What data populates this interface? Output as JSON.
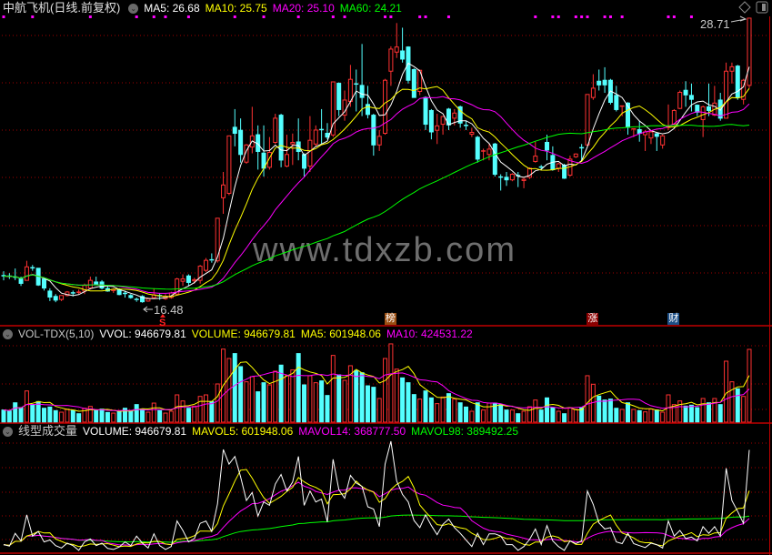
{
  "main_header": {
    "title": "中航飞机(日线.前复权)",
    "ma5": "MA5: 26.68",
    "ma10": "MA10: 25.75",
    "ma20": "MA20: 25.10",
    "ma60": "MA60: 24.21"
  },
  "volume_header": {
    "name": "VOL-TDX(5,10)",
    "vvol": "VVOL: 946679.81",
    "volume": "VOLUME: 946679.81",
    "ma5": "MA5: 601948.06",
    "ma10": "MA10: 424531.22"
  },
  "line_volume_header": {
    "name": "线型成交量",
    "volume": "VOLUME: 946679.81",
    "mavol5": "MAVOL5: 601948.06",
    "mavol14": "MAVOL14: 368777.50",
    "mavol98": "MAVOL98: 389492.25"
  },
  "labels": {
    "high": "28.71",
    "low": "16.48",
    "signal_s": "S",
    "tag_bang": "榜",
    "tag_zhang": "涨",
    "tag_cai": "财",
    "watermark": "www.tdxzb.com"
  },
  "icons": [
    "chevron-down-icon",
    "diamond-icon",
    "panel-toggle-icon"
  ],
  "colors": {
    "up": "#ff3232",
    "down": "#54ffff",
    "ma5": "#ffffff",
    "ma10": "#ffff00",
    "ma20": "#ff00ff",
    "ma60": "#00ff00",
    "grid": "#a00000",
    "divider": "#c00000",
    "tag_bang": "#9a4e12",
    "tag_zhang": "#8b0000",
    "tag_cai": "#1d4f86",
    "marker": "#ff00ff"
  },
  "chart_data": [
    {
      "type": "candlestick",
      "panel": "price",
      "ylim": [
        15.49,
        29.49
      ],
      "grid": true,
      "moving_averages": [
        5,
        10,
        20,
        60
      ],
      "high_marker_bar": 129,
      "low_marker_bar": 24,
      "signal_s_bar": 28,
      "tag_bars": {
        "tag_bang": 67,
        "tag_zhang": 102,
        "tag_cai": 116
      },
      "top_marker_bars": [
        0,
        5,
        15,
        23,
        26,
        28,
        32,
        40,
        45,
        51,
        57,
        59,
        66,
        67,
        72,
        73,
        77,
        92,
        95,
        96,
        99,
        100,
        101,
        104,
        105,
        107,
        115,
        116,
        119
      ],
      "ohlc": [
        [
          17.64,
          17.83,
          17.44,
          17.62
        ],
        [
          17.62,
          17.75,
          17.5,
          17.6
        ],
        [
          17.58,
          17.95,
          17.45,
          17.57
        ],
        [
          17.5,
          17.6,
          17.2,
          17.31
        ],
        [
          17.44,
          18.28,
          17.44,
          18.02
        ],
        [
          17.98,
          18.1,
          17.85,
          17.96
        ],
        [
          17.96,
          17.96,
          17.2,
          17.24
        ],
        [
          17.5,
          17.55,
          17.0,
          17.11
        ],
        [
          16.98,
          17.1,
          16.55,
          16.72
        ],
        [
          16.75,
          16.85,
          16.5,
          16.59
        ],
        [
          16.62,
          16.8,
          16.55,
          16.79
        ],
        [
          16.79,
          16.98,
          16.75,
          16.94
        ],
        [
          16.9,
          17.0,
          16.75,
          16.88
        ],
        [
          16.92,
          17.05,
          16.85,
          16.93
        ],
        [
          16.98,
          17.3,
          16.85,
          17.22
        ],
        [
          17.11,
          17.6,
          17.05,
          17.44
        ],
        [
          17.37,
          17.6,
          17.25,
          17.27
        ],
        [
          17.37,
          17.45,
          17.05,
          17.11
        ],
        [
          17.09,
          17.2,
          16.95,
          16.98
        ],
        [
          17.0,
          17.1,
          16.9,
          17.05
        ],
        [
          17.05,
          17.1,
          16.8,
          16.83
        ],
        [
          16.88,
          17.0,
          16.7,
          16.87
        ],
        [
          16.79,
          16.85,
          16.65,
          16.7
        ],
        [
          16.62,
          16.7,
          16.52,
          16.58
        ],
        [
          16.75,
          16.8,
          16.48,
          16.52
        ],
        [
          16.55,
          16.7,
          16.52,
          16.65
        ],
        [
          16.7,
          17.1,
          16.65,
          16.82
        ],
        [
          16.78,
          16.9,
          16.6,
          16.76
        ],
        [
          16.65,
          16.85,
          16.6,
          16.75
        ],
        [
          16.7,
          16.95,
          16.65,
          16.9
        ],
        [
          16.85,
          17.55,
          16.8,
          17.5
        ],
        [
          17.4,
          17.7,
          17.2,
          17.5
        ],
        [
          17.63,
          17.7,
          17.2,
          17.35
        ],
        [
          17.42,
          17.55,
          17.3,
          17.47
        ],
        [
          17.44,
          18.1,
          17.3,
          18.05
        ],
        [
          17.87,
          18.4,
          17.8,
          18.3
        ],
        [
          18.32,
          18.6,
          18.2,
          18.28
        ],
        [
          18.28,
          20.11,
          18.2,
          20.11
        ],
        [
          20.99,
          22.1,
          20.3,
          21.54
        ],
        [
          21.18,
          23.65,
          21.1,
          23.65
        ],
        [
          24.02,
          24.8,
          23.2,
          23.76
        ],
        [
          23.89,
          24.4,
          22.5,
          22.85
        ],
        [
          22.52,
          23.3,
          22.45,
          23.26
        ],
        [
          23.17,
          24.9,
          22.9,
          23.65
        ],
        [
          23.7,
          24.1,
          22.2,
          22.98
        ],
        [
          22.91,
          24.1,
          21.9,
          22.26
        ],
        [
          22.3,
          23.6,
          22.2,
          22.94
        ],
        [
          23.37,
          24.6,
          23.3,
          24.41
        ],
        [
          24.54,
          24.6,
          22.3,
          22.61
        ],
        [
          22.35,
          23.7,
          22.3,
          22.85
        ],
        [
          23.3,
          23.75,
          22.4,
          23.37
        ],
        [
          23.39,
          24.4,
          22.6,
          22.98
        ],
        [
          22.85,
          22.9,
          21.9,
          22.26
        ],
        [
          22.35,
          24.5,
          22.1,
          23.46
        ],
        [
          23.3,
          24.1,
          23.2,
          23.9
        ],
        [
          23.92,
          24.8,
          23.3,
          23.9
        ],
        [
          23.76,
          24.2,
          23.5,
          23.6
        ],
        [
          23.69,
          25.97,
          23.6,
          25.97
        ],
        [
          25.91,
          25.95,
          24.5,
          24.78
        ],
        [
          24.54,
          25.6,
          24.3,
          25.19
        ],
        [
          25.13,
          26.7,
          24.9,
          26.08
        ],
        [
          25.88,
          26.5,
          24.7,
          25.87
        ],
        [
          25.82,
          27.6,
          24.5,
          25.3
        ],
        [
          25.0,
          25.8,
          24.4,
          24.57
        ],
        [
          24.54,
          24.6,
          22.8,
          23.26
        ],
        [
          23.26,
          23.9,
          23.0,
          23.63
        ],
        [
          23.76,
          26.1,
          23.7,
          26.04
        ],
        [
          26.43,
          27.5,
          25.8,
          27.38
        ],
        [
          27.25,
          28.5,
          27.0,
          27.47
        ],
        [
          27.3,
          28.3,
          26.8,
          26.95
        ],
        [
          27.47,
          27.5,
          25.9,
          26.04
        ],
        [
          26.5,
          26.55,
          25.3,
          25.3
        ],
        [
          25.56,
          26.5,
          25.4,
          26.47
        ],
        [
          25.3,
          25.35,
          23.9,
          24.15
        ],
        [
          24.74,
          24.8,
          23.5,
          23.82
        ],
        [
          23.89,
          24.6,
          23.3,
          24.08
        ],
        [
          24.15,
          24.5,
          23.7,
          24.48
        ],
        [
          24.8,
          24.85,
          23.9,
          24.12
        ],
        [
          24.41,
          24.8,
          24.1,
          24.63
        ],
        [
          24.9,
          24.95,
          24.0,
          24.2
        ],
        [
          24.1,
          24.3,
          23.9,
          24.08
        ],
        [
          23.72,
          24.0,
          23.6,
          23.8
        ],
        [
          23.59,
          23.65,
          22.5,
          22.65
        ],
        [
          22.98,
          23.1,
          22.6,
          23.0
        ],
        [
          22.85,
          23.3,
          22.6,
          23.08
        ],
        [
          23.3,
          23.35,
          21.9,
          22.0
        ],
        [
          21.88,
          22.0,
          21.3,
          21.87
        ],
        [
          21.87,
          22.1,
          21.5,
          21.76
        ],
        [
          21.76,
          22.05,
          21.7,
          22.0
        ],
        [
          21.94,
          22.1,
          21.45,
          21.93
        ],
        [
          21.73,
          21.85,
          21.4,
          21.78
        ],
        [
          21.87,
          22.3,
          21.8,
          22.26
        ],
        [
          22.55,
          23.4,
          22.5,
          22.78
        ],
        [
          22.31,
          22.4,
          22.2,
          22.3
        ],
        [
          23.37,
          23.7,
          22.6,
          23.04
        ],
        [
          22.81,
          23.2,
          22.15,
          22.2
        ],
        [
          22.26,
          22.5,
          22.1,
          22.45
        ],
        [
          22.39,
          22.45,
          21.8,
          21.83
        ],
        [
          21.96,
          22.8,
          21.9,
          22.65
        ],
        [
          22.75,
          22.9,
          22.7,
          22.87
        ],
        [
          23.14,
          23.3,
          22.6,
          23.13
        ],
        [
          23.26,
          25.43,
          23.2,
          25.43
        ],
        [
          25.3,
          26.3,
          25.2,
          25.7
        ],
        [
          26.0,
          26.5,
          25.6,
          25.84
        ],
        [
          26.04,
          26.6,
          25.5,
          25.84
        ],
        [
          26.04,
          26.1,
          25.0,
          25.09
        ],
        [
          25.39,
          25.8,
          24.7,
          24.78
        ],
        [
          24.9,
          24.95,
          24.5,
          24.93
        ],
        [
          25.06,
          25.1,
          23.7,
          24.02
        ],
        [
          23.92,
          23.97,
          23.6,
          23.95
        ],
        [
          23.92,
          24.3,
          23.4,
          23.76
        ],
        [
          23.7,
          23.9,
          23.0,
          23.82
        ],
        [
          23.56,
          23.9,
          23.3,
          23.82
        ],
        [
          23.74,
          23.8,
          23.0,
          23.63
        ],
        [
          23.26,
          23.7,
          23.1,
          23.65
        ],
        [
          24.0,
          25.0,
          23.9,
          24.02
        ],
        [
          24.15,
          24.8,
          24.1,
          24.74
        ],
        [
          24.83,
          25.6,
          24.8,
          25.52
        ],
        [
          25.61,
          26.0,
          24.9,
          25.41
        ],
        [
          25.39,
          25.9,
          24.7,
          25.22
        ],
        [
          24.97,
          25.0,
          24.5,
          24.67
        ],
        [
          24.35,
          24.95,
          23.6,
          24.9
        ],
        [
          24.9,
          25.9,
          24.5,
          24.74
        ],
        [
          24.54,
          25.8,
          24.5,
          25.06
        ],
        [
          25.19,
          25.5,
          24.3,
          24.41
        ],
        [
          24.41,
          26.8,
          24.4,
          26.43
        ],
        [
          26.43,
          26.8,
          25.9,
          26.62
        ],
        [
          26.65,
          26.7,
          25.2,
          25.3
        ],
        [
          25.22,
          26.1,
          25.0,
          26.04
        ],
        [
          25.82,
          28.71,
          25.7,
          28.71
        ]
      ]
    },
    {
      "type": "bar",
      "panel": "volume",
      "ylim": [
        0,
        1053000
      ],
      "grid": true,
      "moving_averages": [
        5,
        10
      ],
      "values": [
        158000,
        146000,
        252000,
        189000,
        406000,
        229000,
        268000,
        181000,
        197000,
        150000,
        130000,
        170000,
        150000,
        110000,
        181000,
        205000,
        150000,
        170000,
        126000,
        118000,
        138000,
        181000,
        150000,
        229000,
        170000,
        130000,
        248000,
        150000,
        118000,
        142000,
        355000,
        276000,
        181000,
        209000,
        335000,
        355000,
        268000,
        497000,
        950000,
        828000,
        892000,
        722000,
        525000,
        592000,
        395000,
        513000,
        485000,
        663000,
        742000,
        604000,
        679000,
        892000,
        485000,
        604000,
        513000,
        537000,
        347000,
        868000,
        615000,
        544000,
        734000,
        671000,
        643000,
        473000,
        454000,
        308000,
        828000,
        1018000,
        690000,
        576000,
        513000,
        359000,
        300000,
        406000,
        316000,
        241000,
        327000,
        371000,
        300000,
        252000,
        197000,
        142000,
        252000,
        158000,
        248000,
        248000,
        229000,
        158000,
        158000,
        110000,
        142000,
        201000,
        288000,
        158000,
        316000,
        189000,
        142000,
        110000,
        189000,
        166000,
        189000,
        604000,
        493000,
        339000,
        288000,
        300000,
        181000,
        166000,
        252000,
        166000,
        150000,
        134000,
        170000,
        158000,
        130000,
        355000,
        229000,
        276000,
        209000,
        221000,
        189000,
        308000,
        252000,
        308000,
        229000,
        793000,
        525000,
        434000,
        335000,
        946679.81
      ],
      "up": [
        0,
        0,
        0,
        0,
        1,
        0,
        0,
        0,
        0,
        0,
        1,
        1,
        0,
        0,
        1,
        1,
        0,
        0,
        0,
        1,
        0,
        0,
        0,
        0,
        0,
        1,
        1,
        0,
        1,
        1,
        1,
        1,
        0,
        1,
        1,
        1,
        0,
        1,
        1,
        1,
        0,
        0,
        1,
        1,
        0,
        0,
        1,
        1,
        0,
        1,
        1,
        0,
        0,
        1,
        1,
        0,
        0,
        1,
        0,
        1,
        1,
        0,
        0,
        0,
        0,
        1,
        1,
        1,
        1,
        0,
        0,
        0,
        1,
        0,
        0,
        1,
        1,
        0,
        1,
        0,
        0,
        1,
        0,
        1,
        1,
        0,
        0,
        0,
        1,
        0,
        1,
        1,
        1,
        0,
        0,
        0,
        1,
        0,
        1,
        1,
        0,
        1,
        1,
        0,
        0,
        0,
        0,
        1,
        0,
        1,
        0,
        1,
        1,
        0,
        1,
        1,
        1,
        1,
        0,
        0,
        0,
        1,
        0,
        1,
        0,
        1,
        1,
        0,
        1,
        1
      ]
    },
    {
      "type": "line",
      "panel": "line-volume",
      "ylim": [
        102000,
        1041000
      ],
      "grid": true,
      "series": [
        {
          "name": "VOLUME",
          "source": "volume",
          "color": "#ffffff"
        },
        {
          "name": "MAVOL5",
          "source": "volume",
          "ma": 5,
          "color": "#ffff00"
        },
        {
          "name": "MAVOL14",
          "source": "volume",
          "ma": 14,
          "color": "#ff00ff"
        },
        {
          "name": "MAVOL98",
          "source": "volume",
          "ma": 98,
          "color": "#00ff00"
        }
      ]
    }
  ]
}
